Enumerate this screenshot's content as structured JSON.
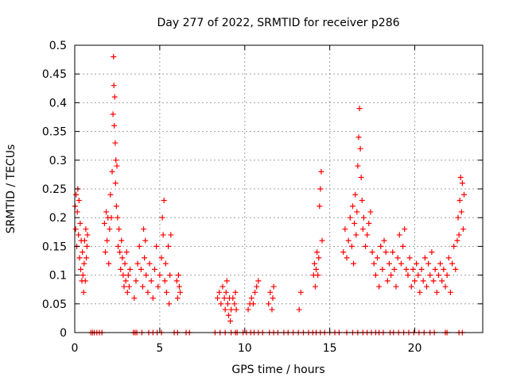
{
  "chart_data": {
    "type": "scatter",
    "title": "Day 277 of 2022, SRMTID for receiver p286",
    "xlabel": "GPS time / hours",
    "ylabel": "SRMTID / TECUs",
    "xlim": [
      0,
      24
    ],
    "ylim": [
      0,
      0.5
    ],
    "xticks": [
      0,
      5,
      10,
      15,
      20
    ],
    "xtick_labels": [
      "0",
      "5",
      "10",
      "15",
      "20"
    ],
    "yticks": [
      0,
      0.05,
      0.1,
      0.15,
      0.2,
      0.25,
      0.3,
      0.35,
      0.4,
      0.45,
      0.5
    ],
    "ytick_labels": [
      "0",
      "0.05",
      "0.1",
      "0.15",
      "0.2",
      "0.25",
      "0.3",
      "0.35",
      "0.4",
      "0.45",
      "0.5"
    ],
    "grid": true,
    "marker": "+",
    "marker_color": "#ff0000",
    "series": [
      {
        "name": "SRMTID",
        "points": [
          [
            0.02,
            0.22
          ],
          [
            0.05,
            0.18
          ],
          [
            0.08,
            0.24
          ],
          [
            0.12,
            0.15
          ],
          [
            0.15,
            0.21
          ],
          [
            0.18,
            0.25
          ],
          [
            0.22,
            0.17
          ],
          [
            0.25,
            0.23
          ],
          [
            0.28,
            0.13
          ],
          [
            0.32,
            0.19
          ],
          [
            0.35,
            0.11
          ],
          [
            0.38,
            0.16
          ],
          [
            0.42,
            0.09
          ],
          [
            0.45,
            0.14
          ],
          [
            0.48,
            0.1
          ],
          [
            0.52,
            0.07
          ],
          [
            0.55,
            0.12
          ],
          [
            0.58,
            0.16
          ],
          [
            0.62,
            0.09
          ],
          [
            0.65,
            0.18
          ],
          [
            0.68,
            0.13
          ],
          [
            0.72,
            0.15
          ],
          [
            0.75,
            0.17
          ],
          [
            1.75,
            0.19
          ],
          [
            1.8,
            0.14
          ],
          [
            1.85,
            0.21
          ],
          [
            1.9,
            0.16
          ],
          [
            1.95,
            0.2
          ],
          [
            2.0,
            0.12
          ],
          [
            2.05,
            0.18
          ],
          [
            2.1,
            0.24
          ],
          [
            2.15,
            0.2
          ],
          [
            2.2,
            0.28
          ],
          [
            2.25,
            0.38
          ],
          [
            2.28,
            0.48
          ],
          [
            2.3,
            0.43
          ],
          [
            2.32,
            0.36
          ],
          [
            2.35,
            0.41
          ],
          [
            2.38,
            0.33
          ],
          [
            2.4,
            0.26
          ],
          [
            2.42,
            0.3
          ],
          [
            2.45,
            0.22
          ],
          [
            2.48,
            0.29
          ],
          [
            2.52,
            0.2
          ],
          [
            2.55,
            0.15
          ],
          [
            2.6,
            0.18
          ],
          [
            2.65,
            0.14
          ],
          [
            2.7,
            0.11
          ],
          [
            2.75,
            0.16
          ],
          [
            2.8,
            0.13
          ],
          [
            2.85,
            0.1
          ],
          [
            2.9,
            0.08
          ],
          [
            2.95,
            0.12
          ],
          [
            3.0,
            0.09
          ],
          [
            3.05,
            0.14
          ],
          [
            3.1,
            0.07
          ],
          [
            3.15,
            0.1
          ],
          [
            3.2,
            0.08
          ],
          [
            3.25,
            0.11
          ],
          [
            3.5,
            0.06
          ],
          [
            3.6,
            0.09
          ],
          [
            3.7,
            0.12
          ],
          [
            3.8,
            0.15
          ],
          [
            3.9,
            0.11
          ],
          [
            4.0,
            0.08
          ],
          [
            4.05,
            0.18
          ],
          [
            4.1,
            0.13
          ],
          [
            4.15,
            0.16
          ],
          [
            4.2,
            0.1
          ],
          [
            4.3,
            0.07
          ],
          [
            4.4,
            0.12
          ],
          [
            4.5,
            0.09
          ],
          [
            4.6,
            0.06
          ],
          [
            4.7,
            0.11
          ],
          [
            4.8,
            0.15
          ],
          [
            4.9,
            0.08
          ],
          [
            5.0,
            0.1
          ],
          [
            5.1,
            0.13
          ],
          [
            5.15,
            0.2
          ],
          [
            5.2,
            0.17
          ],
          [
            5.25,
            0.23
          ],
          [
            5.3,
            0.09
          ],
          [
            5.35,
            0.12
          ],
          [
            5.4,
            0.07
          ],
          [
            5.5,
            0.15
          ],
          [
            5.55,
            0.05
          ],
          [
            5.6,
            0.1
          ],
          [
            5.65,
            0.17
          ],
          [
            6.0,
            0.09
          ],
          [
            6.05,
            0.06
          ],
          [
            6.1,
            0.1
          ],
          [
            6.15,
            0.08
          ],
          [
            6.2,
            0.07
          ],
          [
            8.4,
            0.06
          ],
          [
            8.5,
            0.07
          ],
          [
            8.6,
            0.05
          ],
          [
            8.7,
            0.08
          ],
          [
            8.8,
            0.06
          ],
          [
            8.85,
            0.04
          ],
          [
            8.9,
            0.07
          ],
          [
            8.95,
            0.09
          ],
          [
            9.0,
            0.05
          ],
          [
            9.05,
            0.03
          ],
          [
            9.1,
            0.06
          ],
          [
            9.15,
            0.02
          ],
          [
            9.2,
            0.04
          ],
          [
            9.3,
            0.06
          ],
          [
            9.4,
            0.05
          ],
          [
            9.45,
            0.07
          ],
          [
            9.5,
            0.04
          ],
          [
            10.2,
            0.04
          ],
          [
            10.3,
            0.05
          ],
          [
            10.4,
            0.06
          ],
          [
            10.5,
            0.05
          ],
          [
            10.6,
            0.07
          ],
          [
            10.7,
            0.08
          ],
          [
            10.8,
            0.09
          ],
          [
            11.4,
            0.05
          ],
          [
            11.5,
            0.07
          ],
          [
            11.6,
            0.04
          ],
          [
            11.65,
            0.06
          ],
          [
            11.7,
            0.08
          ],
          [
            13.2,
            0.04
          ],
          [
            13.3,
            0.07
          ],
          [
            14.05,
            0.1
          ],
          [
            14.1,
            0.12
          ],
          [
            14.15,
            0.08
          ],
          [
            14.2,
            0.11
          ],
          [
            14.25,
            0.14
          ],
          [
            14.3,
            0.1
          ],
          [
            14.35,
            0.13
          ],
          [
            14.4,
            0.22
          ],
          [
            14.45,
            0.25
          ],
          [
            14.5,
            0.28
          ],
          [
            14.55,
            0.16
          ],
          [
            15.8,
            0.14
          ],
          [
            15.9,
            0.18
          ],
          [
            16.0,
            0.13
          ],
          [
            16.1,
            0.16
          ],
          [
            16.2,
            0.2
          ],
          [
            16.3,
            0.15
          ],
          [
            16.35,
            0.22
          ],
          [
            16.4,
            0.12
          ],
          [
            16.45,
            0.19
          ],
          [
            16.5,
            0.24
          ],
          [
            16.55,
            0.17
          ],
          [
            16.6,
            0.21
          ],
          [
            16.65,
            0.29
          ],
          [
            16.7,
            0.34
          ],
          [
            16.75,
            0.39
          ],
          [
            16.8,
            0.32
          ],
          [
            16.85,
            0.27
          ],
          [
            16.9,
            0.23
          ],
          [
            16.95,
            0.18
          ],
          [
            17.0,
            0.2
          ],
          [
            17.1,
            0.15
          ],
          [
            17.2,
            0.17
          ],
          [
            17.3,
            0.19
          ],
          [
            17.4,
            0.21
          ],
          [
            17.5,
            0.14
          ],
          [
            17.6,
            0.12
          ],
          [
            17.7,
            0.1
          ],
          [
            17.8,
            0.13
          ],
          [
            17.9,
            0.08
          ],
          [
            18.0,
            0.15
          ],
          [
            18.1,
            0.11
          ],
          [
            18.2,
            0.16
          ],
          [
            18.3,
            0.14
          ],
          [
            18.4,
            0.09
          ],
          [
            18.5,
            0.12
          ],
          [
            18.6,
            0.1
          ],
          [
            18.7,
            0.14
          ],
          [
            18.8,
            0.11
          ],
          [
            18.9,
            0.08
          ],
          [
            19.0,
            0.13
          ],
          [
            19.1,
            0.17
          ],
          [
            19.2,
            0.12
          ],
          [
            19.3,
            0.15
          ],
          [
            19.4,
            0.18
          ],
          [
            19.5,
            0.11
          ],
          [
            19.6,
            0.1
          ],
          [
            19.7,
            0.13
          ],
          [
            19.8,
            0.08
          ],
          [
            19.9,
            0.11
          ],
          [
            20.0,
            0.09
          ],
          [
            20.1,
            0.12
          ],
          [
            20.2,
            0.1
          ],
          [
            20.3,
            0.07
          ],
          [
            20.4,
            0.11
          ],
          [
            20.5,
            0.09
          ],
          [
            20.6,
            0.13
          ],
          [
            20.7,
            0.08
          ],
          [
            20.8,
            0.12
          ],
          [
            20.9,
            0.1
          ],
          [
            21.0,
            0.14
          ],
          [
            21.1,
            0.09
          ],
          [
            21.2,
            0.11
          ],
          [
            21.3,
            0.07
          ],
          [
            21.4,
            0.1
          ],
          [
            21.5,
            0.12
          ],
          [
            21.6,
            0.09
          ],
          [
            21.7,
            0.11
          ],
          [
            21.8,
            0.08
          ],
          [
            21.9,
            0.1
          ],
          [
            22.0,
            0.13
          ],
          [
            22.1,
            0.07
          ],
          [
            22.2,
            0.12
          ],
          [
            22.3,
            0.15
          ],
          [
            22.4,
            0.11
          ],
          [
            22.5,
            0.16
          ],
          [
            22.55,
            0.2
          ],
          [
            22.6,
            0.17
          ],
          [
            22.65,
            0.23
          ],
          [
            22.7,
            0.27
          ],
          [
            22.75,
            0.21
          ],
          [
            22.8,
            0.26
          ],
          [
            22.85,
            0.18
          ],
          [
            22.9,
            0.24
          ]
        ]
      }
    ],
    "zero_markers": [
      0.95,
      1.05,
      1.15,
      1.3,
      1.45,
      1.6,
      3.45,
      3.55,
      3.65,
      3.95,
      4.35,
      4.6,
      4.85,
      5.1,
      5.85,
      6.05,
      6.55,
      6.75,
      8.25,
      8.55,
      8.85,
      9.2,
      9.45,
      9.55,
      9.9,
      10.1,
      10.35,
      10.55,
      10.8,
      11.05,
      11.45,
      11.7,
      11.95,
      12.3,
      12.55,
      12.85,
      13.15,
      13.45,
      13.75,
      14.0,
      14.2,
      14.45,
      14.7,
      15.0,
      15.3,
      15.55,
      16.0,
      16.35,
      16.65,
      16.95,
      17.2,
      17.45,
      17.7,
      17.9,
      18.15,
      18.55,
      18.75,
      19.05,
      19.35,
      19.65,
      19.95,
      20.25,
      20.55,
      20.9,
      21.15,
      21.8,
      21.9,
      22.6,
      22.8
    ]
  }
}
